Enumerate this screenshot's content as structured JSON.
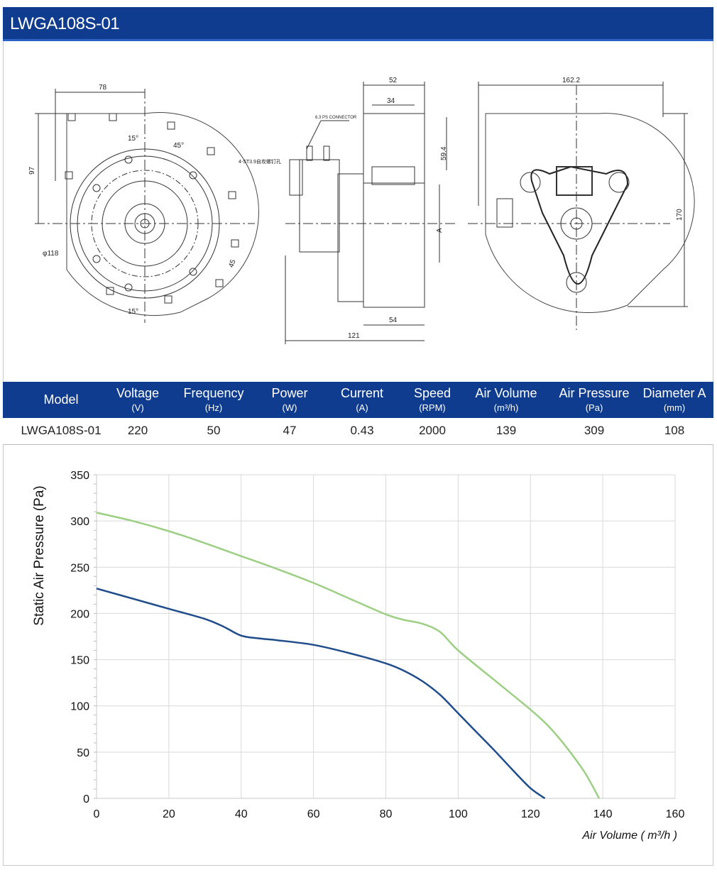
{
  "header": {
    "title": "LWGA108S-01"
  },
  "drawing": {
    "dims_front": [
      "78",
      "97",
      "15°",
      "45°",
      "4-ST3.9自攻螺钉孔",
      "φ118",
      "45",
      "15°"
    ],
    "dims_side": [
      "52",
      "34",
      "6.3 PS CONNECTOR",
      "59.4",
      "A",
      "54",
      "121"
    ],
    "dims_back": [
      "162.2",
      "170"
    ]
  },
  "spec_table": {
    "columns": [
      {
        "name": "Model",
        "unit": ""
      },
      {
        "name": "Voltage",
        "unit": "(V)"
      },
      {
        "name": "Frequency",
        "unit": "(Hz)"
      },
      {
        "name": "Power",
        "unit": "(W)"
      },
      {
        "name": "Current",
        "unit": "(A)"
      },
      {
        "name": "Speed",
        "unit": "(RPM)"
      },
      {
        "name": "Air Volume",
        "unit": "(m³/h)"
      },
      {
        "name": "Air Pressure",
        "unit": "(Pa)"
      },
      {
        "name": "Diameter A",
        "unit": "(mm)"
      }
    ],
    "row": [
      "LWGA108S-01",
      "220",
      "50",
      "47",
      "0.43",
      "2000",
      "139",
      "309",
      "108"
    ]
  },
  "chart_data": {
    "type": "line",
    "title": "",
    "xlabel": "Air Volume ( m³/h )",
    "ylabel": "Static Air Pressure  (Pa)",
    "xlim": [
      0,
      160
    ],
    "ylim": [
      0,
      350
    ],
    "xticks": [
      0,
      20,
      40,
      60,
      80,
      100,
      120,
      140,
      160
    ],
    "yticks": [
      0,
      50,
      100,
      150,
      200,
      250,
      300,
      350
    ],
    "grid": true,
    "series": [
      {
        "color": "#9ccf84",
        "x": [
          0,
          10,
          20,
          30,
          40,
          50,
          60,
          70,
          80,
          85,
          90,
          95,
          100,
          110,
          120,
          125,
          130,
          135,
          139
        ],
        "y": [
          309,
          300,
          289,
          276,
          262,
          248,
          233,
          216,
          199,
          193,
          189,
          180,
          160,
          128,
          96,
          78,
          55,
          28,
          0
        ]
      },
      {
        "color": "#1f4c8a",
        "x": [
          0,
          10,
          20,
          30,
          35,
          40,
          45,
          50,
          60,
          70,
          80,
          85,
          90,
          95,
          100,
          105,
          110,
          115,
          120,
          124
        ],
        "y": [
          227,
          216,
          205,
          194,
          186,
          176,
          173,
          171,
          166,
          157,
          146,
          138,
          127,
          112,
          92,
          72,
          52,
          31,
          11,
          0
        ]
      }
    ]
  }
}
